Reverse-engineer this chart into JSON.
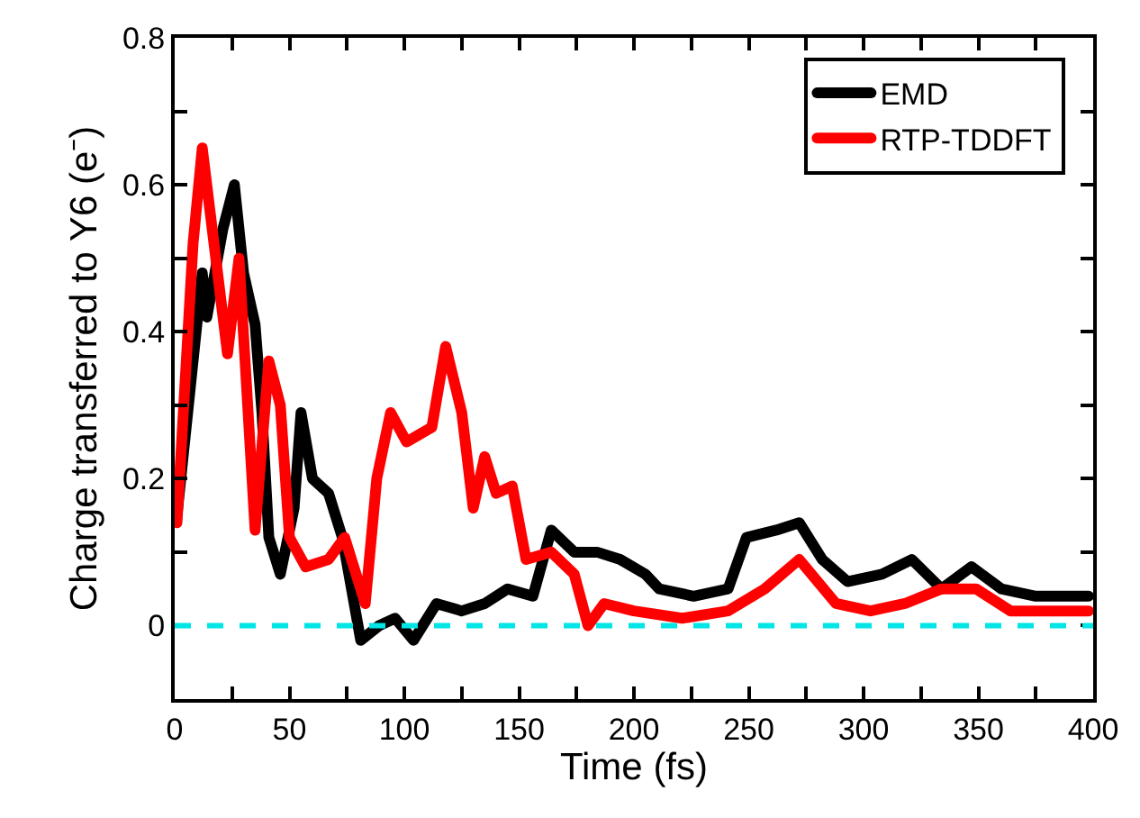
{
  "chart_data": {
    "type": "line",
    "xlabel": "Time (fs)",
    "ylabel": "Charge transferred to Y6 (e⁻)",
    "xlim": [
      0,
      400
    ],
    "ylim": [
      -0.1,
      0.8
    ],
    "xticks": [
      0,
      {
        "value": 25,
        "label": null
      },
      50,
      {
        "value": 75,
        "label": null
      },
      100,
      {
        "value": 125,
        "label": null
      },
      150,
      {
        "value": 175,
        "label": null
      },
      200,
      {
        "value": 225,
        "label": null
      },
      250,
      {
        "value": 275,
        "label": null
      },
      300,
      {
        "value": 325,
        "label": null
      },
      350,
      {
        "value": 375,
        "label": null
      },
      400
    ],
    "yticks": [
      0,
      {
        "value": 0.1,
        "label": null
      },
      0.2,
      {
        "value": 0.3,
        "label": null
      },
      0.4,
      {
        "value": 0.5,
        "label": null
      },
      0.6,
      {
        "value": 0.7,
        "label": null
      },
      0.8
    ],
    "legend": "top right",
    "marker": "none",
    "line_style": "solid",
    "ref_lines": [
      {
        "axis": "y",
        "value": 0,
        "color": "#00e5e5",
        "line_style": "dashed"
      }
    ],
    "series": [
      {
        "name": "EMD",
        "color": "#000000",
        "x": [
          1,
          12,
          14,
          21,
          26,
          30,
          35,
          38,
          41,
          46,
          52,
          55,
          60,
          67,
          73,
          81,
          89,
          96,
          104,
          114,
          125,
          135,
          145,
          156,
          164,
          174,
          184,
          194,
          205,
          211,
          226,
          241,
          249,
          262,
          272,
          282,
          293,
          308,
          321,
          334,
          347,
          360,
          375,
          398
        ],
        "values": [
          0.15,
          0.48,
          0.42,
          0.54,
          0.6,
          0.48,
          0.41,
          0.29,
          0.12,
          0.07,
          0.16,
          0.29,
          0.2,
          0.18,
          0.12,
          -0.02,
          0.0,
          0.01,
          -0.02,
          0.03,
          0.02,
          0.03,
          0.05,
          0.04,
          0.13,
          0.1,
          0.1,
          0.09,
          0.07,
          0.05,
          0.04,
          0.05,
          0.12,
          0.13,
          0.14,
          0.09,
          0.06,
          0.07,
          0.09,
          0.05,
          0.08,
          0.05,
          0.04,
          0.04
        ]
      },
      {
        "name": "RTP-TDDFT",
        "color": "#ff0000",
        "x": [
          1,
          8,
          12,
          23,
          28,
          35,
          41,
          46,
          50,
          57,
          67,
          74,
          83,
          88,
          94,
          101,
          112,
          118,
          125,
          130,
          135,
          140,
          147,
          153,
          164,
          174,
          180,
          187,
          200,
          221,
          241,
          257,
          272,
          288,
          303,
          318,
          334,
          349,
          364,
          380,
          398
        ],
        "values": [
          0.14,
          0.52,
          0.65,
          0.37,
          0.5,
          0.13,
          0.36,
          0.3,
          0.12,
          0.08,
          0.09,
          0.12,
          0.03,
          0.2,
          0.29,
          0.25,
          0.27,
          0.38,
          0.29,
          0.16,
          0.23,
          0.18,
          0.19,
          0.09,
          0.1,
          0.07,
          0.0,
          0.03,
          0.02,
          0.01,
          0.02,
          0.05,
          0.09,
          0.03,
          0.02,
          0.03,
          0.05,
          0.05,
          0.02,
          0.02,
          0.02
        ]
      }
    ]
  }
}
